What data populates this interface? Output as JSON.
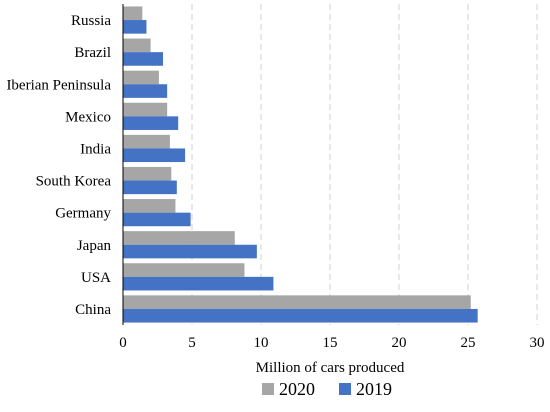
{
  "chart_data": {
    "type": "bar",
    "orientation": "horizontal",
    "categories": [
      "Russia",
      "Brazil",
      "Iberian Peninsula",
      "Mexico",
      "India",
      "South Korea",
      "Germany",
      "Japan",
      "USA",
      "China"
    ],
    "series": [
      {
        "name": "2020",
        "color": "#a6a6a6",
        "values": [
          1.4,
          2.0,
          2.6,
          3.2,
          3.4,
          3.5,
          3.8,
          8.1,
          8.8,
          25.2
        ]
      },
      {
        "name": "2019",
        "color": "#4472c4",
        "values": [
          1.7,
          2.9,
          3.2,
          4.0,
          4.5,
          3.9,
          4.9,
          9.7,
          10.9,
          25.7
        ]
      }
    ],
    "xlabel": "Million of cars produced",
    "xlim": [
      0,
      30
    ],
    "xticks": [
      0,
      5,
      10,
      15,
      20,
      25,
      30
    ],
    "grid": true,
    "legend_position": "bottom"
  }
}
